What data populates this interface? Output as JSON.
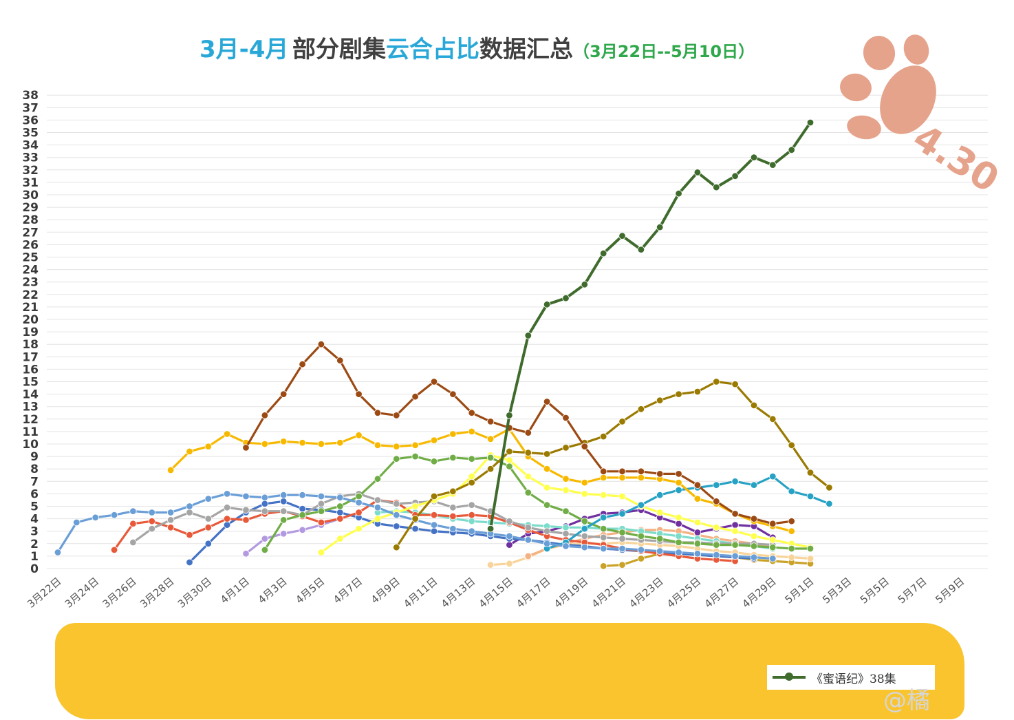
{
  "title": {
    "part1": "3月-4月",
    "part2": "部分剧集",
    "part3": "云合占比",
    "part4": "数据汇总",
    "part5": "（3月22日--5月10日）"
  },
  "date_note": "4.30",
  "watermark": "@橘",
  "colors": {
    "title_blue": "#29a8d8",
    "title_dark": "#404040",
    "title_green": "#2ea84a",
    "cover": "#f9c42e",
    "paw": "#e6a38c"
  },
  "chart_data": {
    "type": "line",
    "title": "3月-4月 部分剧集云合占比数据汇总（3月22日--5月10日）",
    "xlabel": "",
    "ylabel": "",
    "ylim": [
      0,
      38
    ],
    "grid": true,
    "legend": "bottom",
    "x_start": "3月22日",
    "x_end": "5月10日",
    "yticks": [
      "0",
      "1",
      "2",
      "3",
      "4",
      "5",
      "6",
      "7",
      "8",
      "9",
      "10",
      "11",
      "12",
      "13",
      "14",
      "15",
      "16",
      "17",
      "18",
      "19",
      "20",
      "21",
      "22",
      "23",
      "24",
      "25",
      "26",
      "27",
      "28",
      "29",
      "30",
      "31",
      "32",
      "33",
      "34",
      "35",
      "36",
      "37",
      "38"
    ],
    "xtick_labels": [
      "3月22日",
      "3月24日",
      "3月26日",
      "3月28日",
      "3月30日",
      "4月1日",
      "4月3日",
      "4月5日",
      "4月7日",
      "4月9日",
      "4月11日",
      "4月13日",
      "4月15日",
      "4月17日",
      "4月19日",
      "4月21日",
      "4月23日",
      "4月25日",
      "4月27日",
      "4月29日",
      "5月1日",
      "5月3日",
      "5月5日",
      "5月7日",
      "5月9日"
    ],
    "series": [
      {
        "name": "《蜜语纪》38集",
        "color": "#3f6b2c",
        "start_index": 23,
        "values": [
          3.2,
          12.3,
          18.7,
          21.2,
          21.7,
          22.8,
          25.3,
          26.7,
          25.6,
          27.4,
          30.1,
          31.8,
          30.6,
          31.5,
          33.0,
          32.4,
          33.6,
          35.8
        ]
      },
      {
        "color": "#9c4a14",
        "start_index": 10,
        "values": [
          9.7,
          12.3,
          14.0,
          16.4,
          18.0,
          16.7,
          14.0,
          12.5,
          12.3,
          13.8,
          15.0,
          14.0,
          12.5,
          11.8,
          11.3,
          10.9,
          13.4,
          12.1,
          9.8,
          7.8,
          7.8,
          7.8,
          7.6,
          7.6,
          6.7,
          5.4,
          4.4,
          4.0,
          3.6,
          3.8
        ]
      },
      {
        "color": "#9a7a00",
        "start_index": 18,
        "values": [
          1.7,
          4.0,
          5.8,
          6.2,
          6.9,
          8.0,
          9.4,
          9.3,
          9.2,
          9.7,
          10.1,
          10.6,
          11.8,
          12.8,
          13.5,
          14.0,
          14.2,
          15.0,
          14.8,
          13.1,
          12.0,
          9.9,
          7.7,
          6.5
        ]
      },
      {
        "color": "#f7b900",
        "start_index": 6,
        "values": [
          7.9,
          9.4,
          9.8,
          10.8,
          10.1,
          10.0,
          10.2,
          10.1,
          10.0,
          10.1,
          10.7,
          9.9,
          9.8,
          9.9,
          10.3,
          10.8,
          11.0,
          10.4,
          11.2,
          9.0,
          8.0,
          7.2,
          6.9,
          7.3,
          7.3,
          7.3,
          7.2,
          6.9,
          5.6,
          5.2,
          4.4,
          3.8,
          3.4,
          3.0
        ]
      },
      {
        "color": "#6a9ed6",
        "start_index": 0,
        "values": [
          1.3,
          3.7,
          4.1,
          4.3,
          4.6,
          4.5,
          4.5,
          5.0,
          5.6,
          6.0,
          5.8,
          5.7,
          5.9,
          5.9,
          5.8,
          5.7,
          5.3,
          4.9,
          4.3,
          3.9,
          3.5,
          3.2,
          3.0,
          2.8,
          2.6,
          2.3,
          2.0,
          1.8,
          1.7,
          1.6,
          1.6,
          1.5,
          1.4,
          1.3,
          1.2,
          1.1,
          1.0,
          0.9,
          0.8
        ]
      },
      {
        "color": "#27a2c4",
        "start_index": 26,
        "values": [
          1.6,
          2.1,
          3.2,
          4.1,
          4.4,
          5.1,
          5.9,
          6.3,
          6.5,
          6.7,
          7.0,
          6.7,
          7.4,
          6.2,
          5.8,
          5.2
        ]
      },
      {
        "color": "#70ad47",
        "start_index": 11,
        "values": [
          1.5,
          3.9,
          4.3,
          4.6,
          5.0,
          5.8,
          7.2,
          8.8,
          9.0,
          8.6,
          8.9,
          8.8,
          8.9,
          8.2,
          6.1,
          5.1,
          4.6,
          3.8,
          3.2,
          2.9,
          2.6,
          2.4,
          2.1,
          2.0,
          1.9,
          1.9,
          1.8,
          1.7,
          1.6,
          1.6
        ]
      },
      {
        "color": "#ffff4d",
        "start_index": 14,
        "values": [
          1.3,
          2.4,
          3.2,
          4.0,
          4.5,
          5.0,
          5.5,
          6.0,
          7.4,
          9.1,
          8.7,
          7.4,
          6.5,
          6.3,
          6.0,
          5.9,
          5.8,
          5.0,
          4.5,
          4.1,
          3.7,
          3.3,
          3.0,
          2.6,
          2.3,
          2.0,
          1.7
        ]
      },
      {
        "color": "#a5a5a5",
        "start_index": 4,
        "values": [
          2.1,
          3.2,
          3.9,
          4.5,
          4.0,
          4.9,
          4.7,
          4.6,
          4.6,
          4.3,
          5.2,
          5.8,
          6.0,
          5.5,
          5.2,
          5.3,
          5.4,
          4.9,
          5.1,
          4.6,
          3.8,
          3.3,
          3.0,
          2.8,
          2.6,
          2.5,
          2.4,
          2.3,
          2.2,
          2.1,
          2.1,
          2.0,
          2.0,
          2.0,
          1.9
        ]
      },
      {
        "color": "#e8593a",
        "start_index": 3,
        "values": [
          1.5,
          3.6,
          3.8,
          3.3,
          2.7,
          3.3,
          4.0,
          3.9,
          4.4,
          4.6,
          4.2,
          3.7,
          4.0,
          4.5,
          5.5,
          5.3,
          4.3,
          4.3,
          4.2,
          4.3,
          4.2,
          3.7,
          3.1,
          2.6,
          2.3,
          2.1,
          1.9,
          1.6,
          1.4,
          1.2,
          1.0,
          0.8,
          0.7,
          0.6
        ]
      },
      {
        "color": "#4472c4",
        "start_index": 7,
        "values": [
          0.5,
          2.0,
          3.5,
          4.5,
          5.2,
          5.4,
          4.8,
          4.7,
          4.5,
          4.1,
          3.6,
          3.4,
          3.2,
          3.0,
          2.9,
          2.8,
          2.6,
          2.4,
          2.3,
          2.1,
          1.9,
          1.8,
          1.6,
          1.5,
          1.4,
          1.3,
          1.2,
          1.1,
          1.0,
          0.9,
          0.8
        ]
      },
      {
        "color": "#7cdccc",
        "start_index": 17,
        "values": [
          4.5,
          4.6,
          4.5,
          4.3,
          4.0,
          3.8,
          3.7,
          3.6,
          3.5,
          3.4,
          3.3,
          3.3,
          3.2,
          3.2,
          3.0,
          2.8,
          2.6,
          2.4,
          2.2,
          2.0,
          1.8,
          1.6
        ]
      },
      {
        "color": "#b39ae0",
        "start_index": 10,
        "values": [
          1.2,
          2.4,
          2.8,
          3.1,
          3.5,
          4.0
        ]
      },
      {
        "color": "#7030a0",
        "start_index": 24,
        "values": [
          1.9,
          2.8,
          3.0,
          3.4,
          4.0,
          4.4,
          4.5,
          4.7,
          4.1,
          3.6,
          2.9,
          3.2,
          3.5,
          3.4,
          2.5
        ]
      },
      {
        "color": "#f4b183",
        "start_index": 25,
        "values": [
          1.0,
          1.6,
          2.0,
          2.4,
          2.7,
          2.9,
          3.1,
          3.1,
          3.0,
          2.7,
          2.4,
          2.2,
          2.0,
          1.8
        ]
      },
      {
        "color": "#f9d49a",
        "start_index": 23,
        "values": [
          0.3,
          0.4,
          0.9,
          1.6,
          1.9,
          2.0,
          2.0,
          2.1,
          2.0,
          1.9,
          1.8,
          1.6,
          1.4,
          1.3,
          1.1,
          1.0,
          0.9,
          0.8
        ]
      },
      {
        "color": "#c9a227",
        "start_index": 29,
        "values": [
          0.2,
          0.3,
          0.8,
          1.2,
          1.2,
          1.1,
          1.0,
          0.9,
          0.7,
          0.6,
          0.5,
          0.4
        ]
      }
    ]
  }
}
